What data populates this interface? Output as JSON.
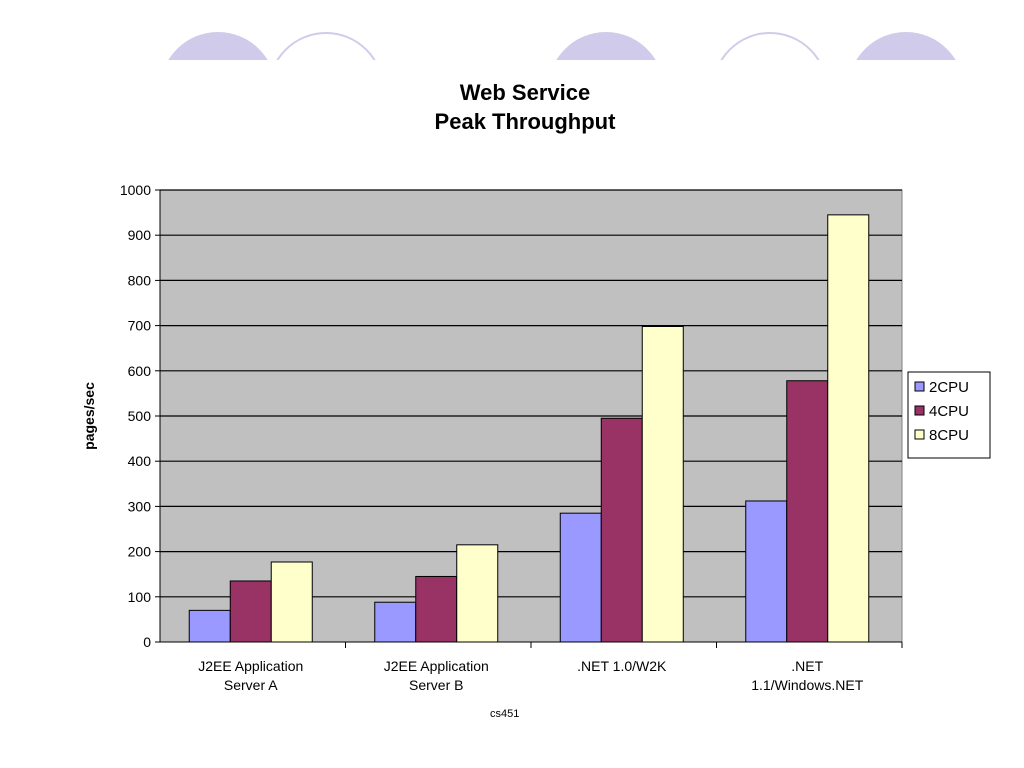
{
  "footer": {
    "text": "cs451"
  },
  "colors": {
    "plot_background": "#c0c0c0",
    "gridline": "#000000",
    "decor_circle": "#d0cbea"
  },
  "chart_data": {
    "type": "bar",
    "title_lines": [
      "Web Service",
      "Peak Throughput"
    ],
    "ylabel": "pages/sec",
    "xlabel": "",
    "ylim": [
      0,
      1000
    ],
    "yticks": [
      0,
      100,
      200,
      300,
      400,
      500,
      600,
      700,
      800,
      900,
      1000
    ],
    "grid": true,
    "legend_position": "right",
    "categories": [
      [
        "J2EE Application",
        "Server A"
      ],
      [
        "J2EE Application",
        "Server B"
      ],
      [
        ".NET 1.0/W2K"
      ],
      [
        ".NET",
        "1.1/Windows.NET"
      ]
    ],
    "series": [
      {
        "name": "2CPU",
        "color": "#9999ff",
        "values": [
          70,
          88,
          285,
          312
        ]
      },
      {
        "name": "4CPU",
        "color": "#993366",
        "values": [
          135,
          145,
          495,
          578
        ]
      },
      {
        "name": "8CPU",
        "color": "#ffffcc",
        "values": [
          177,
          215,
          698,
          945
        ]
      }
    ]
  }
}
